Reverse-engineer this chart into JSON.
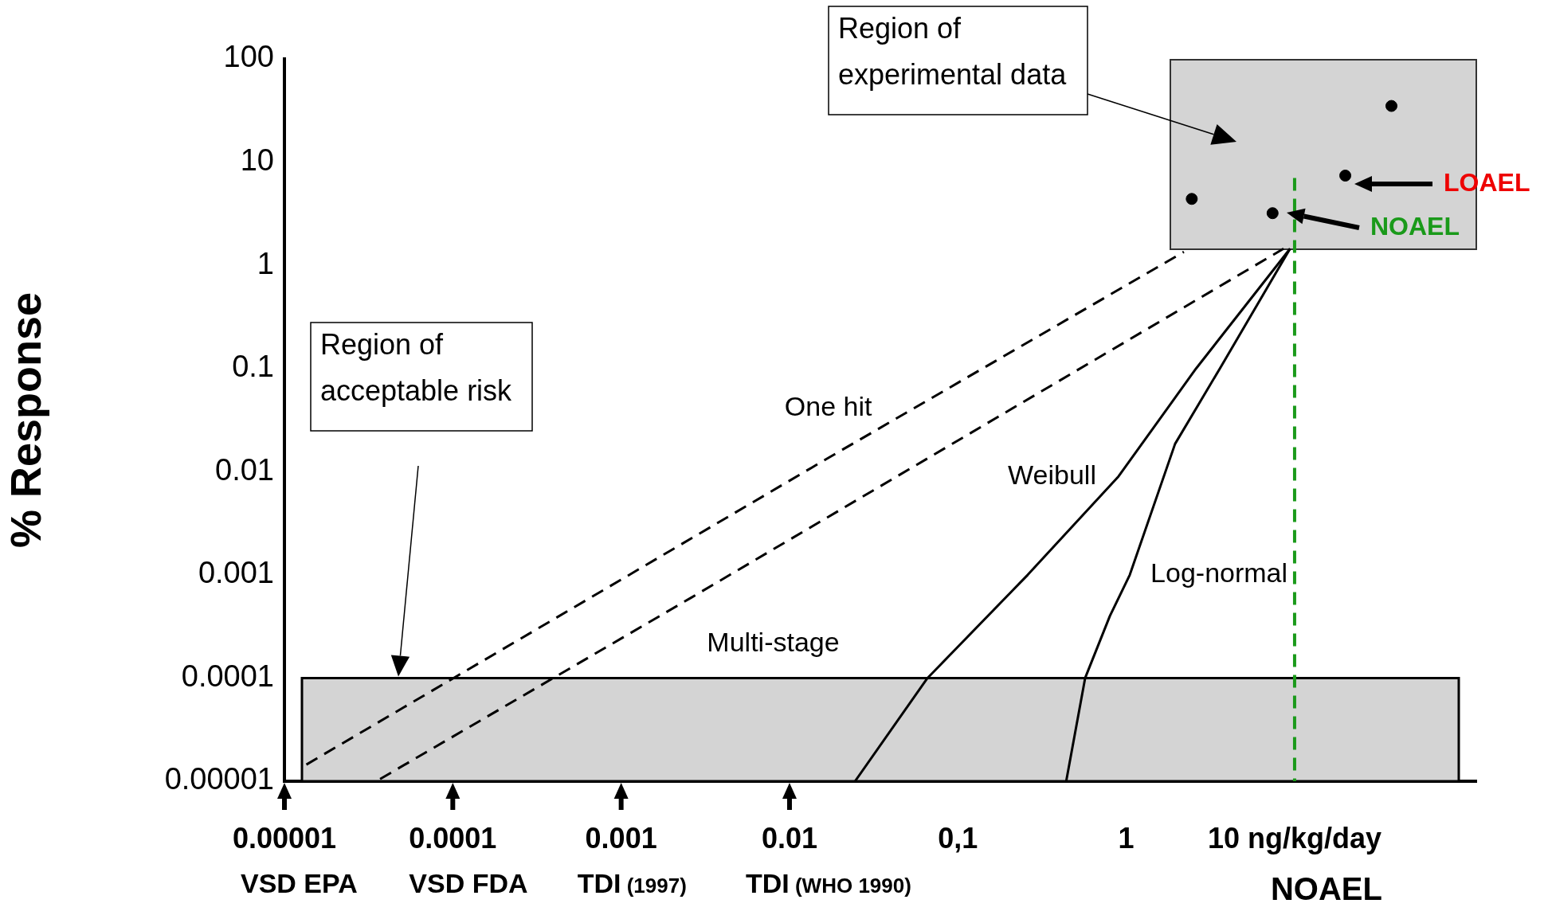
{
  "chart_data": {
    "type": "line",
    "ylabel": "% Response",
    "log": "xy",
    "legend": false,
    "xlim": [
      1e-05,
      120
    ],
    "ylim": [
      1e-05,
      100
    ],
    "xticks": [
      {
        "value": 1e-05,
        "label": "0.00001"
      },
      0.0001,
      0.001,
      0.01,
      {
        "value": 0.1,
        "label": "0,1"
      },
      1,
      {
        "value": 10,
        "label": "10 ng/kg/day"
      }
    ],
    "yticks": [
      {
        "value": 1e-05,
        "label": "0.00001"
      },
      0.0001,
      0.001,
      0.01,
      0.1,
      1,
      10,
      100
    ],
    "series": [
      {
        "name": "One hit",
        "color": "#000000",
        "line_style": "dashed",
        "x": [
          1.35e-05,
          0.017,
          2.2
        ],
        "values": [
          1.45e-05,
          0.0136,
          1.35
        ]
      },
      {
        "name": "Multi-stage",
        "color": "#000000",
        "line_style": "dashed",
        "x": [
          3.7e-05,
          0.0026,
          8.6
        ],
        "values": [
          1.05e-05,
          0.0006,
          1.45
        ]
      },
      {
        "name": "Weibull",
        "color": "#000000",
        "line_style": "solid",
        "x": [
          0.0245,
          0.066,
          0.26,
          0.9,
          2.6,
          9.4
        ],
        "values": [
          1e-05,
          0.0001,
          0.001,
          0.009,
          0.1,
          1.45
        ]
      },
      {
        "name": "Log-normal",
        "color": "#000000",
        "line_style": "solid",
        "x": [
          0.44,
          0.57,
          0.8,
          1.05,
          1.95,
          3.6,
          9.4
        ],
        "values": [
          1e-05,
          0.0001,
          0.0004,
          0.001,
          0.0186,
          0.1,
          1.45
        ]
      },
      {
        "type": "scatter",
        "color": "#000000",
        "marker": "circle",
        "x": [
          2.45,
          7.4,
          20,
          37.6
        ],
        "values": [
          4.4,
          3.2,
          7.4,
          35
        ]
      }
    ],
    "bands": [
      {
        "axis": "y",
        "from": 1e-05,
        "to": 0.0001,
        "color": "#d4d4d4"
      }
    ],
    "ref_lines": [
      {
        "axis": "x",
        "value": 10,
        "label": "NOAEL",
        "color": "#1a9a1a",
        "line_style": "dashed"
      }
    ],
    "annotations": [
      "Region of experimental data",
      "Region of acceptable risk",
      "LOAEL",
      "NOAEL",
      "VSD EPA",
      "VSD FDA",
      "TDI (1997)",
      "TDI (WHO 1990)"
    ]
  }
}
